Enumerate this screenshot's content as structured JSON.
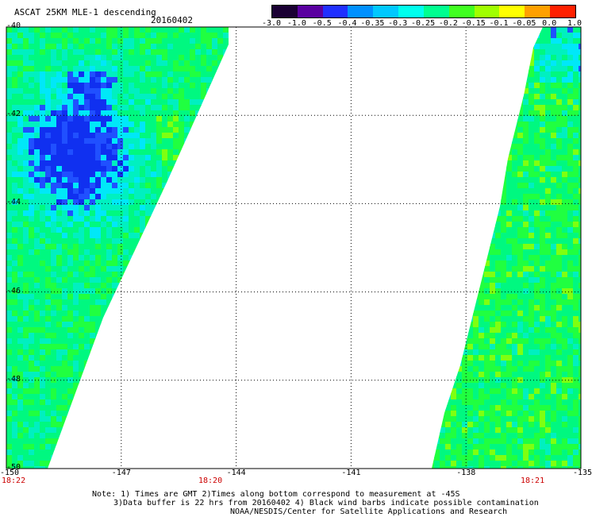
{
  "header": {
    "title": "ASCAT 25KM MLE-1 descending",
    "date": "20160402"
  },
  "colorbar": {
    "labels": [
      "-3.0",
      "-1.0",
      "-0.5",
      "-0.4",
      "-0.35",
      "-0.3",
      "-0.25",
      "-0.2",
      "-0.15",
      "-0.1",
      "-0.05",
      "0.0",
      "1.0"
    ],
    "colors": [
      "#1a0033",
      "#5a00a0",
      "#2030ff",
      "#0090ff",
      "#00c8ff",
      "#00ffee",
      "#00ff90",
      "#40ff20",
      "#a0ff00",
      "#ffff00",
      "#ffa000",
      "#ff2000"
    ]
  },
  "axes": {
    "lat_labels": [
      "-40",
      "-42",
      "-44",
      "-46",
      "-48",
      "-50"
    ],
    "lat_values": [
      -40,
      -42,
      -44,
      -46,
      -48,
      -50
    ],
    "lon_labels": [
      "-150",
      "-147",
      "-144",
      "-141",
      "-138",
      "-135"
    ],
    "lon_values": [
      -150,
      -147,
      -144,
      -141,
      -138,
      -135
    ]
  },
  "times": {
    "left": "18:22",
    "middle": "18:20",
    "right": "18:21"
  },
  "notes": {
    "line1": "Note: 1) Times are GMT 2)Times along bottom correspond to measurement at -45S",
    "line2": "3)Data buffer is 22 hrs from 20160402 4) Black wind barbs indicate possible contamination",
    "line3": "NOAA/NESDIS/Center for Satellite Applications and Research"
  },
  "colors": {
    "ocean_base": "#00ff80",
    "low_blue": "#1030f0",
    "mid_cyan": "#00f0f0",
    "high_yellow": "#f0f000",
    "high_orange": "#ff8000"
  }
}
